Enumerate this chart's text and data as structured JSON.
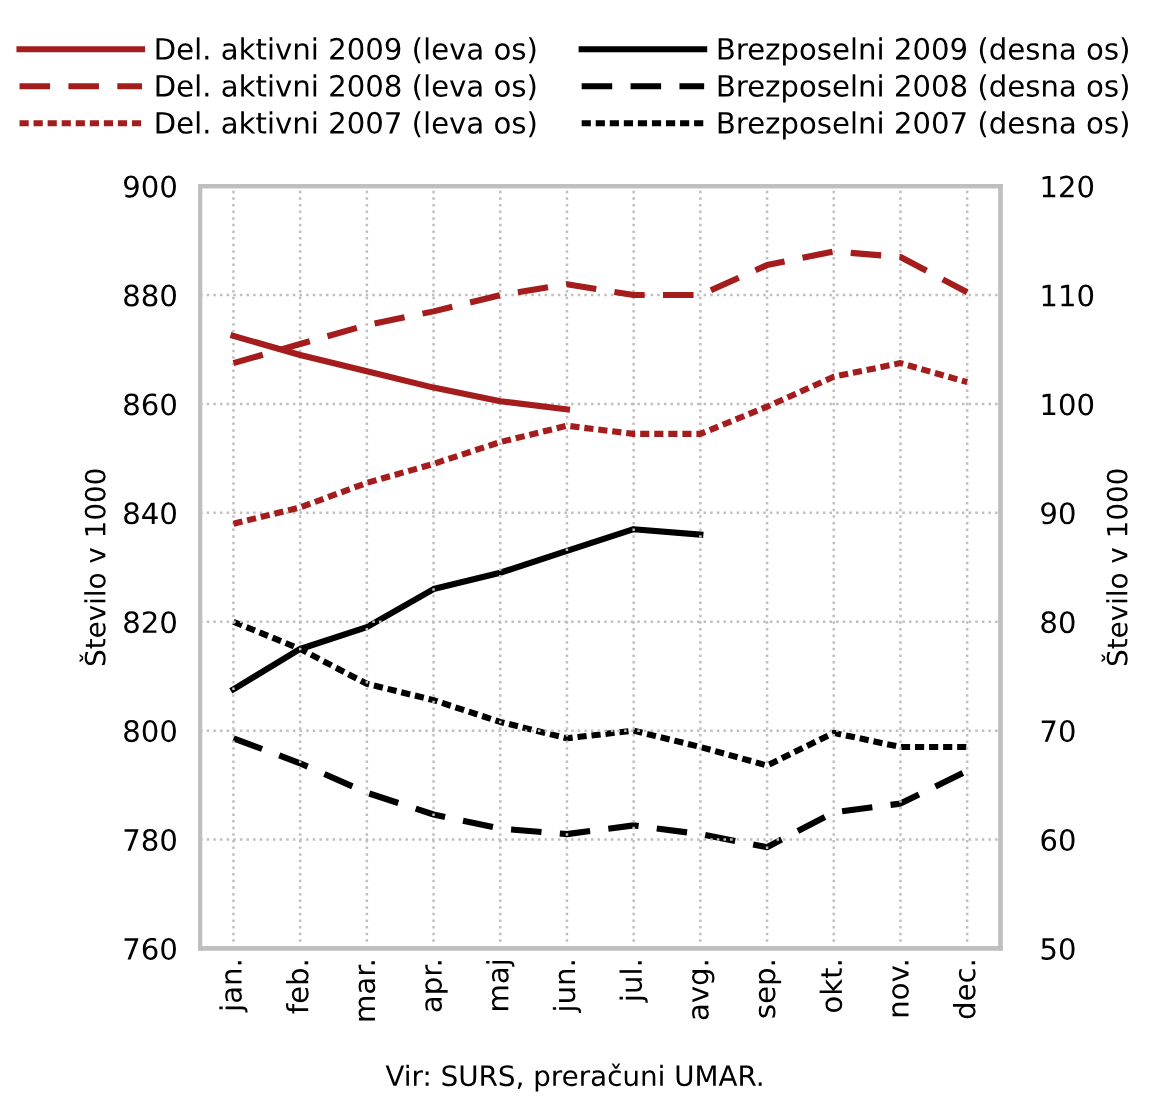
{
  "chart_data": {
    "type": "line",
    "ylabel": "Število v 1000",
    "y2label": "Število v 1000",
    "categories": [
      "jan.",
      "feb.",
      "mar.",
      "apr.",
      "maj",
      "jun.",
      "jul.",
      "avg.",
      "sep.",
      "okt.",
      "nov.",
      "dec."
    ],
    "series": [
      {
        "name": "Del. aktivni 2009 (leva os)",
        "color": "#a51c1c",
        "line_style": "solid",
        "values": [
          872.5,
          869,
          866,
          863,
          860.5,
          859,
          null,
          null,
          null,
          null,
          null,
          null
        ]
      },
      {
        "name": "Del. aktivni 2008 (leva os)",
        "color": "#a51c1c",
        "line_style": "dashed",
        "values": [
          867.5,
          871,
          874.5,
          877,
          880,
          882,
          880,
          880,
          885.5,
          888,
          887,
          880.5
        ]
      },
      {
        "name": "Del. aktivni 2007 (leva os)",
        "color": "#a51c1c",
        "line_style": "dotted",
        "values": [
          838,
          841,
          845.5,
          849,
          853,
          856,
          854.5,
          854.5,
          859.5,
          865,
          867.5,
          864
        ]
      },
      {
        "name": "Brezposelni 2009 (desna os)",
        "color": "#000000",
        "line_style": "solid",
        "axis": "y2",
        "values": [
          73.8,
          77.5,
          79.5,
          83,
          84.5,
          86.5,
          88.5,
          88,
          null,
          null,
          null,
          null
        ]
      },
      {
        "name": "Brezposelni 2008 (desna os)",
        "color": "#000000",
        "line_style": "dashed",
        "axis": "y2",
        "values": [
          69.3,
          67,
          64.3,
          62.3,
          61,
          60.5,
          61.3,
          60.5,
          59.3,
          62.5,
          63.3,
          66.3
        ]
      },
      {
        "name": "Brezposelni 2007 (desna os)",
        "color": "#000000",
        "line_style": "dotted",
        "axis": "y2",
        "values": [
          80,
          77.5,
          74.3,
          72.8,
          70.8,
          69.3,
          70,
          68.5,
          66.8,
          69.8,
          68.5,
          68.5
        ]
      }
    ],
    "ylim": [
      760,
      900
    ],
    "yticks": [
      760,
      780,
      800,
      820,
      840,
      860,
      880,
      900
    ],
    "y2lim": [
      50,
      120
    ],
    "y2ticks": [
      50,
      60,
      70,
      80,
      90,
      100,
      110,
      120
    ],
    "grid": true,
    "legend": "top",
    "annotations": [
      "Vir: SURS, preračuni UMAR."
    ]
  }
}
